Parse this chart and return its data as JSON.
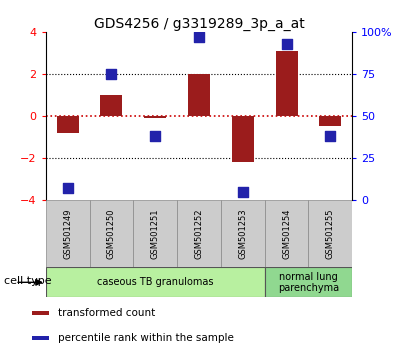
{
  "title": "GDS4256 / g3319289_3p_a_at",
  "samples": [
    "GSM501249",
    "GSM501250",
    "GSM501251",
    "GSM501252",
    "GSM501253",
    "GSM501254",
    "GSM501255"
  ],
  "transformed_count": [
    -0.8,
    1.0,
    -0.1,
    2.0,
    -2.2,
    3.1,
    -0.5
  ],
  "percentile_rank": [
    7,
    75,
    38,
    97,
    5,
    93,
    38
  ],
  "bar_color": "#9B1C1C",
  "dot_color": "#2222AA",
  "ylim_left": [
    -4,
    4
  ],
  "ylim_right": [
    0,
    100
  ],
  "yticks_left": [
    -4,
    -2,
    0,
    2,
    4
  ],
  "yticks_right": [
    0,
    25,
    50,
    75,
    100
  ],
  "ytick_labels_right": [
    "0",
    "25",
    "50",
    "75",
    "100%"
  ],
  "cell_type_groups": [
    {
      "label": "caseous TB granulomas",
      "start": 0,
      "end": 4,
      "color": "#b8f0a0"
    },
    {
      "label": "normal lung\nparenchyma",
      "start": 5,
      "end": 6,
      "color": "#90d890"
    }
  ],
  "cell_type_label": "cell type",
  "legend_items": [
    {
      "color": "#9B1C1C",
      "label": "transformed count"
    },
    {
      "color": "#2222AA",
      "label": "percentile rank within the sample"
    }
  ],
  "hline_color": "#cc0000",
  "dotted_color": "black",
  "bar_width": 0.5,
  "dot_size": 50,
  "sample_box_color": "#cccccc",
  "sample_box_edge": "#888888"
}
